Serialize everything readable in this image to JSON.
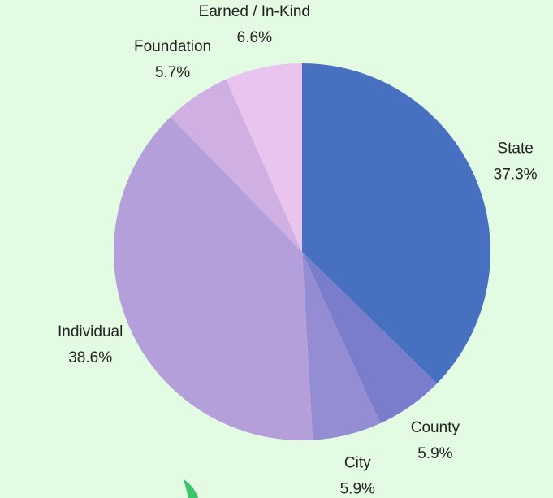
{
  "chart_data": {
    "type": "pie",
    "categories": [
      "State",
      "County",
      "City",
      "Individual",
      "Foundation",
      "Earned / In-Kind"
    ],
    "values": [
      37.3,
      5.9,
      5.9,
      38.6,
      5.7,
      6.6
    ],
    "value_labels": [
      "37.3%",
      "5.9%",
      "5.9%",
      "38.6%",
      "5.7%",
      "6.6%"
    ],
    "colors": [
      "#4770c0",
      "#7a7dcb",
      "#958dd3",
      "#b59fdb",
      "#d0b0e3",
      "#e9c4ee"
    ]
  }
}
